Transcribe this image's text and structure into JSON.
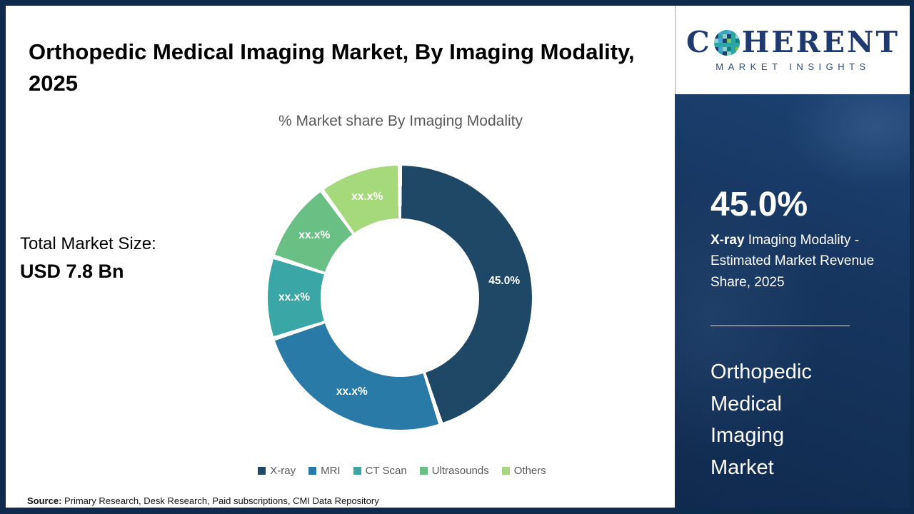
{
  "header": {
    "title": "Orthopedic Medical Imaging Market, By Imaging Modality, 2025"
  },
  "logo": {
    "letter_c": "C",
    "letters_rest": "HERENT",
    "tagline": "MARKET INSIGHTS",
    "mosaic_colors": [
      "#2ca6a4",
      "#70c05e",
      "#1e3f71",
      "#4aa3d8",
      "#8ed0cb",
      "#117e82"
    ]
  },
  "left_panel": {
    "total_market_label": "Total Market Size:",
    "total_market_value": "USD 7.8 Bn"
  },
  "chart_data": {
    "type": "donut",
    "title": "% Market share By Imaging Modality",
    "legend_position": "bottom",
    "start_angle_deg": 0,
    "direction": "clockwise",
    "segments": [
      {
        "label": "X-ray",
        "display": "45.0%",
        "value": 45.0,
        "color": "#1f4866"
      },
      {
        "label": "MRI",
        "display": "xx.x%",
        "value": 25.0,
        "color": "#2a7aa8"
      },
      {
        "label": "CT Scan",
        "display": "xx.x%",
        "value": 10.0,
        "color": "#3aa6a6"
      },
      {
        "label": "Ultrasounds",
        "display": "xx.x%",
        "value": 10.0,
        "color": "#6abf85"
      },
      {
        "label": "Others",
        "display": "xx.x%",
        "value": 10.0,
        "color": "#a6d97c"
      }
    ],
    "note": "Only the X-ray share (45.0%) is labeled numerically; other slices are masked as xx.x% in the image, their sizes are visual estimates."
  },
  "sidebar": {
    "stat_value": "45.0%",
    "stat_desc_bold": "X-ray",
    "stat_desc_rest": " Imaging Modality - Estimated Market Revenue Share, 2025",
    "market_name": "Orthopedic Medical Imaging Market"
  },
  "footer": {
    "source_label": "Source:",
    "source_text": " Primary Research, Desk Research, Paid subscriptions, CMI Data Repository"
  }
}
